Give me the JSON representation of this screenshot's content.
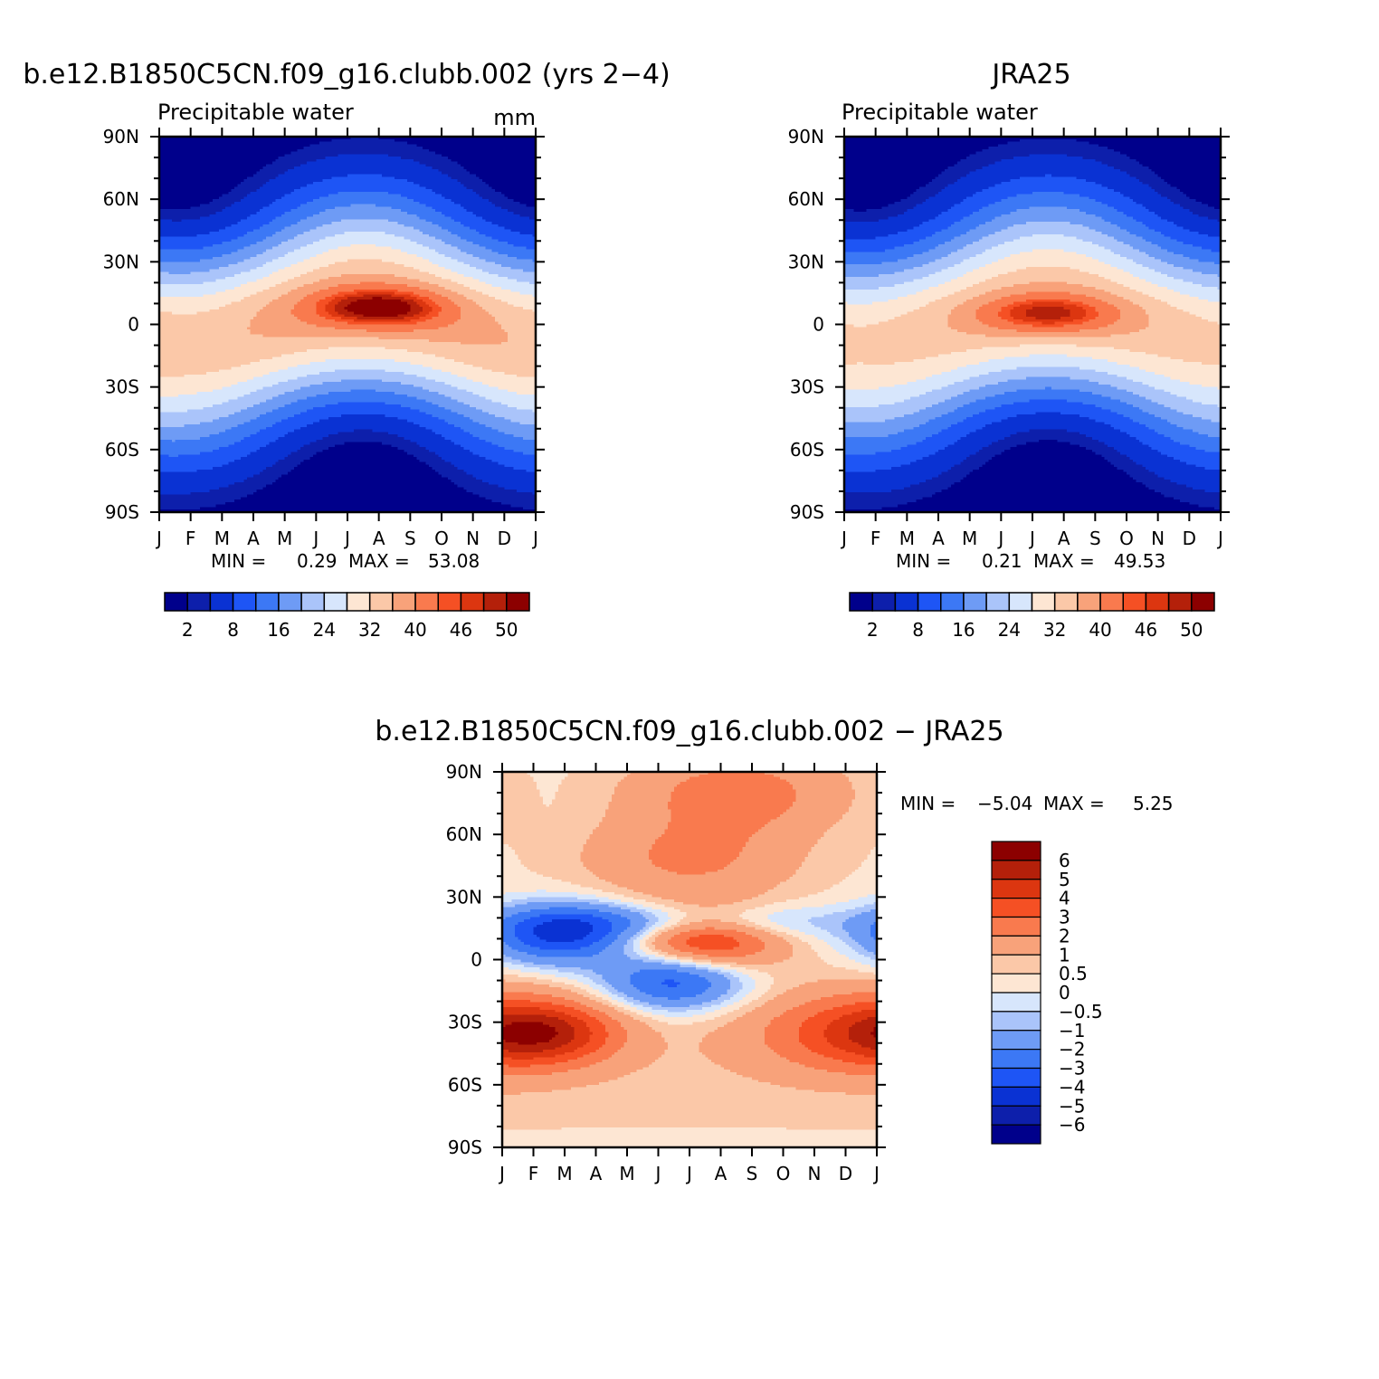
{
  "figure": {
    "panels": [
      {
        "id": "model",
        "title": "b.e12.B1850C5CN.f09_g16.clubb.002 (yrs 2−4)",
        "variable": "Precipitable water",
        "units": "mm",
        "min_label": "MIN =",
        "min_value": "0.29",
        "max_label": "MAX =",
        "max_value": "53.08",
        "peak": 53,
        "peak_lat": 8,
        "peak_month": 7.0
      },
      {
        "id": "obs",
        "title": "JRA25",
        "variable": "Precipitable water",
        "units": "",
        "min_label": "MIN =",
        "min_value": "0.21",
        "max_label": "MAX =",
        "max_value": "49.53",
        "peak": 49.5,
        "peak_lat": 5,
        "peak_month": 6.5
      },
      {
        "id": "diff",
        "title": "b.e12.B1850C5CN.f09_g16.clubb.002 − JRA25",
        "min_label": "MIN =",
        "min_value": "−5.04",
        "max_label": "MAX =",
        "max_value": "5.25"
      }
    ],
    "colorbar_abs": {
      "labels": [
        "2",
        "8",
        "16",
        "24",
        "32",
        "40",
        "46",
        "50"
      ],
      "levels": [
        0,
        2,
        4,
        8,
        12,
        16,
        20,
        24,
        28,
        32,
        36,
        40,
        44,
        46,
        48,
        50,
        60
      ]
    },
    "colorbar_diff": {
      "labels": [
        "6",
        "5",
        "4",
        "3",
        "2",
        "1",
        "0.5",
        "0",
        "−0.5",
        "−1",
        "−2",
        "−3",
        "−4",
        "−5",
        "−6"
      ],
      "levels": [
        -10,
        -6,
        -5,
        -4,
        -3,
        -2,
        -1,
        -0.5,
        0,
        0.5,
        1,
        2,
        3,
        4,
        5,
        6,
        10
      ]
    },
    "palette": [
      "#00008b",
      "#0d1fab",
      "#0a32d3",
      "#1e55f5",
      "#3c78f5",
      "#6e9bf5",
      "#aac4fa",
      "#d7e6fc",
      "#fde6d3",
      "#fbc8a8",
      "#f8a27a",
      "#f97a4e",
      "#f55024",
      "#dc3610",
      "#b4200a",
      "#8c0000"
    ],
    "month_labels": [
      "J",
      "F",
      "M",
      "A",
      "M",
      "J",
      "J",
      "A",
      "S",
      "O",
      "N",
      "D",
      "J"
    ],
    "lat_labels": [
      "90N",
      "60N",
      "30N",
      "0",
      "30S",
      "60S",
      "90S"
    ],
    "lat_values": [
      90,
      60,
      30,
      0,
      -30,
      -60,
      -90
    ]
  },
  "chart_data": [
    {
      "type": "heatmap",
      "title": "b.e12.B1850C5CN.f09_g16.clubb.002 (yrs 2−4)",
      "subtitle": "Precipitable water",
      "units": "mm",
      "x": "month (Jan–Jan)",
      "xlim": [
        0,
        12
      ],
      "y": "latitude",
      "ylim": [
        -90,
        90
      ],
      "zmin": 0.29,
      "zmax": 53.08,
      "description": "Zonal-mean annual cycle; maximum ~53 mm near 8N in Jul–Aug, minima poleward."
    },
    {
      "type": "heatmap",
      "title": "JRA25",
      "subtitle": "Precipitable water",
      "x": "month (Jan–Jan)",
      "xlim": [
        0,
        12
      ],
      "y": "latitude",
      "ylim": [
        -90,
        90
      ],
      "zmin": 0.21,
      "zmax": 49.53,
      "description": "Zonal-mean annual cycle; maximum ~49.5 mm near 5N in Jun–Aug."
    },
    {
      "type": "heatmap",
      "title": "b.e12.B1850C5CN.f09_g16.clubb.002 − JRA25",
      "x": "month (Jan–Jan)",
      "xlim": [
        0,
        12
      ],
      "y": "latitude",
      "ylim": [
        -90,
        90
      ],
      "zmin": -5.04,
      "zmax": 5.25,
      "features": [
        {
          "lat": 10,
          "month": 6.5,
          "value": 4.5
        },
        {
          "lat": 12,
          "month": 1.8,
          "value": -4.5
        },
        {
          "lat": -10,
          "month": 5.5,
          "value": -4.0
        },
        {
          "lat": -35,
          "month": 1.3,
          "value": 3.5
        },
        {
          "lat": -35,
          "month": 11.5,
          "value": 3.0
        },
        {
          "lat": 80,
          "month": 7.5,
          "value": 2.2
        },
        {
          "lat": 48,
          "month": 6.0,
          "value": 1.8
        }
      ],
      "colorbar_levels": [
        -6,
        -5,
        -4,
        -3,
        -2,
        -1,
        -0.5,
        0,
        0.5,
        1,
        2,
        3,
        4,
        5,
        6
      ]
    }
  ]
}
